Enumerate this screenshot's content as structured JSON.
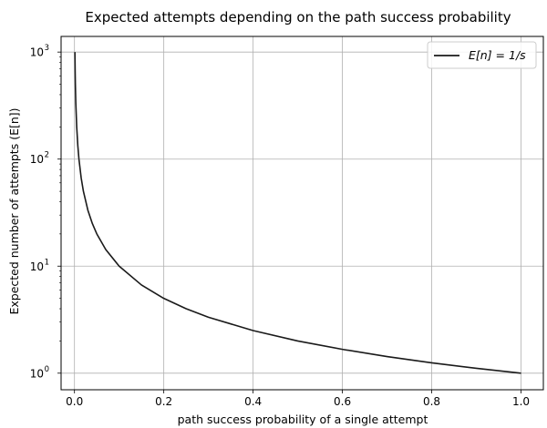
{
  "chart_data": {
    "type": "line",
    "title": "Expected attempts depending on the path success probability",
    "xlabel": "path success probability of a single attempt",
    "ylabel": "Expected number of attempts (E[n])",
    "xlim": [
      -0.03,
      1.05
    ],
    "ylim": [
      0.7,
      1400
    ],
    "y_scale": "log",
    "grid": true,
    "legend_position": "top-right",
    "x_ticks": [
      {
        "value": 0.0,
        "label": "0.0"
      },
      {
        "value": 0.2,
        "label": "0.2"
      },
      {
        "value": 0.4,
        "label": "0.4"
      },
      {
        "value": 0.6,
        "label": "0.6"
      },
      {
        "value": 0.8,
        "label": "0.8"
      },
      {
        "value": 1.0,
        "label": "1.0"
      }
    ],
    "y_ticks": [
      {
        "value": 1,
        "base": "10",
        "exp": "0"
      },
      {
        "value": 10,
        "base": "10",
        "exp": "1"
      },
      {
        "value": 100,
        "base": "10",
        "exp": "2"
      },
      {
        "value": 1000,
        "base": "10",
        "exp": "3"
      }
    ],
    "series": [
      {
        "name": "E[n] = 1/s",
        "color": "#1a1a1a",
        "x": [
          0.001,
          0.0015,
          0.002,
          0.003,
          0.005,
          0.0075,
          0.01,
          0.015,
          0.02,
          0.03,
          0.04,
          0.05,
          0.07,
          0.1,
          0.15,
          0.2,
          0.25,
          0.3,
          0.4,
          0.5,
          0.6,
          0.7,
          0.8,
          0.9,
          1.0
        ],
        "y": [
          1000,
          666.7,
          500,
          333.3,
          200,
          133.3,
          100,
          66.7,
          50,
          33.3,
          25,
          20,
          14.3,
          10,
          6.67,
          5,
          4,
          3.33,
          2.5,
          2,
          1.67,
          1.43,
          1.25,
          1.11,
          1
        ]
      }
    ]
  }
}
